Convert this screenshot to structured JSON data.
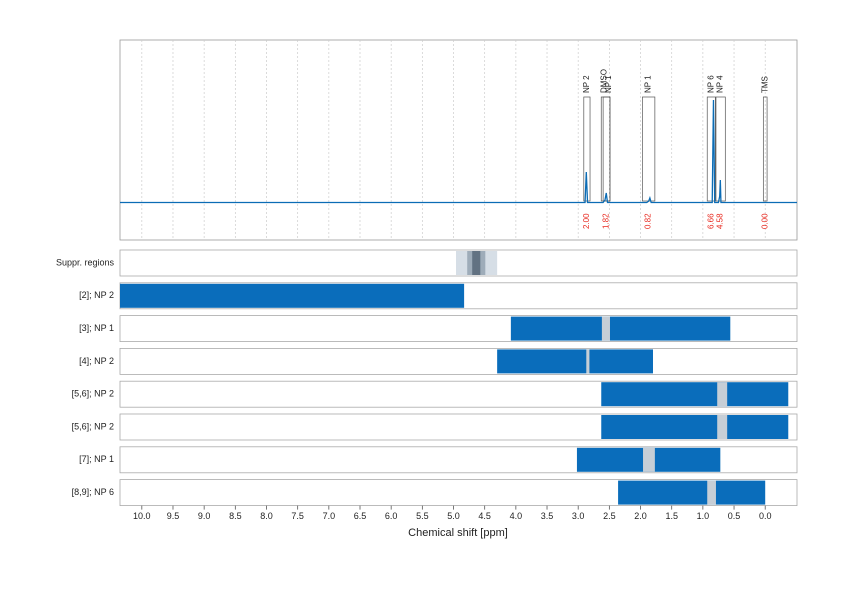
{
  "chart_data": [
    {
      "type": "line",
      "xlim": [
        10.35,
        -0.51
      ],
      "ylim": [
        -0.3,
        1.3
      ],
      "xticks": [
        10,
        9.5,
        9,
        8.5,
        8,
        7.5,
        7,
        6.5,
        6,
        5.5,
        5,
        4.5,
        4,
        3.5,
        3,
        2.5,
        2,
        1.5,
        1,
        0.5,
        0
      ],
      "grid": true,
      "x": [
        10.35,
        3.0,
        2.89,
        2.87,
        2.85,
        2.6,
        2.57,
        2.55,
        2.53,
        1.9,
        1.87,
        1.85,
        1.83,
        0.9,
        0.85,
        0.83,
        0.81,
        0.75,
        0.73,
        0.72,
        0.71,
        0.6,
        -0.51
      ],
      "series": [
        {
          "color": "#0b6cb5",
          "values": [
            0,
            0,
            0,
            0.244,
            0,
            0,
            0.02,
            0.076,
            0,
            0,
            0.01,
            0.036,
            0,
            0,
            0,
            0.82,
            0,
            0,
            0.05,
            0.18,
            0,
            0,
            0
          ]
        }
      ],
      "regions": {
        "labels": [
          "NP 2",
          "DMSO",
          "NP 1",
          "NP 1",
          "NP 6",
          "NP 4",
          "TMS"
        ],
        "ranges": [
          [
            2.91,
            2.81
          ],
          [
            2.63,
            2.49
          ],
          [
            2.6,
            2.49
          ],
          [
            1.97,
            1.77
          ],
          [
            0.93,
            0.8
          ],
          [
            0.79,
            0.64
          ],
          [
            0.03,
            -0.03
          ]
        ],
        "values": [
          2,
          null,
          1.82,
          0.82,
          6.66,
          4.58,
          0
        ],
        "value_labels": [
          "2.00",
          null,
          "1.82",
          "0.82",
          "6.66",
          "4.58",
          "0.00"
        ],
        "value_color": "#e8281e"
      }
    },
    {
      "type": "range",
      "xlim": [
        10.35,
        -0.51
      ],
      "xticks": [
        {
          "value": 10,
          "label": "10.0"
        },
        9.5,
        {
          "value": 9,
          "label": "9.0"
        },
        8.5,
        {
          "value": 8,
          "label": "8.0"
        },
        7.5,
        {
          "value": 7,
          "label": "7.0"
        },
        6.5,
        {
          "value": 6,
          "label": "6.0"
        },
        5.5,
        {
          "value": 5,
          "label": "5.0"
        },
        4.5,
        {
          "value": 4,
          "label": "4.0"
        },
        3.5,
        {
          "value": 3,
          "label": "3.0"
        },
        2.5,
        {
          "value": 2,
          "label": "2.0"
        },
        1.5,
        {
          "value": 1,
          "label": "1.0"
        },
        0.5,
        {
          "value": 0,
          "label": "0.0"
        }
      ],
      "xlabel": "Chemical shift [ppm]",
      "color": "#0a6dbb",
      "gap_color": "#c6ced6",
      "rows": [
        {
          "label": "Suppr. regions",
          "bands": [
            [
              4.96,
              4.3
            ],
            [
              4.78,
              4.49
            ],
            [
              4.7,
              4.57
            ]
          ],
          "colors": [
            "#d6dee6",
            "#9eacb9",
            "#627282"
          ]
        },
        {
          "label": "[2]; NP 2",
          "range": [
            10.35,
            4.83
          ],
          "gaps": []
        },
        {
          "label": "[3]; NP 1",
          "range": [
            4.08,
            0.56
          ],
          "gaps": [
            [
              2.62,
              2.49
            ]
          ]
        },
        {
          "label": "[4]; NP 2",
          "range": [
            4.3,
            1.8
          ],
          "gaps": [
            [
              2.87,
              2.82
            ]
          ]
        },
        {
          "label": "[5,6]; NP 2",
          "range": [
            2.63,
            -0.37
          ],
          "gaps": [
            [
              0.77,
              0.61
            ]
          ]
        },
        {
          "label": "[5,6]; NP 2",
          "range": [
            2.63,
            -0.37
          ],
          "gaps": [
            [
              0.77,
              0.61
            ]
          ]
        },
        {
          "label": "[7]; NP 1",
          "range": [
            3.02,
            0.72
          ],
          "gaps": [
            [
              1.96,
              1.77
            ]
          ]
        },
        {
          "label": "[8,9]; NP 6",
          "range": [
            2.36,
            0.0
          ],
          "gaps": [
            [
              0.93,
              0.79
            ]
          ]
        }
      ]
    }
  ]
}
